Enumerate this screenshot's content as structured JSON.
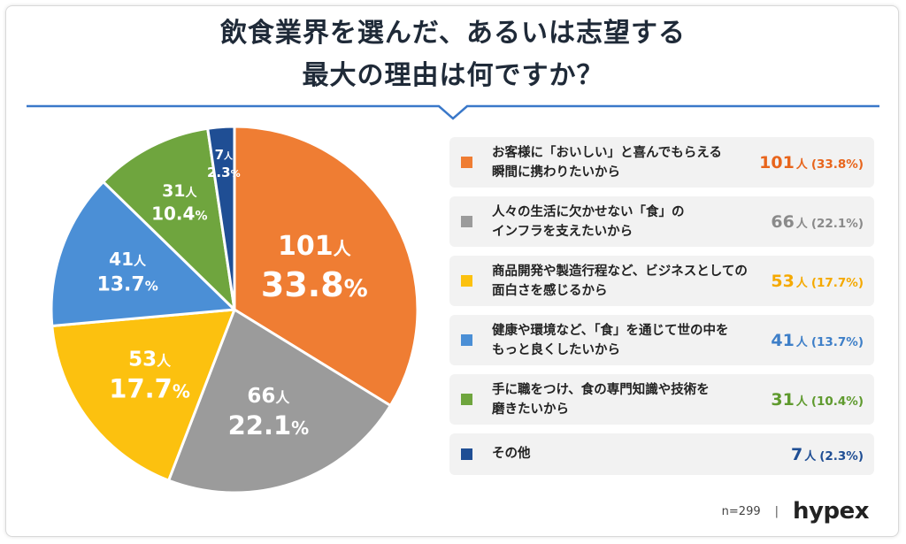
{
  "title": {
    "line1": "飲食業界を選んだ、あるいは志望する",
    "line2": "最大の理由は何ですか？"
  },
  "chart_data": {
    "type": "pie",
    "unit": "人",
    "slices": [
      {
        "label": "お客様に「おいしい」と喜んでもらえる瞬間に携わりたいから",
        "value": 101,
        "percent": "33.8%",
        "color": "#ef7d33"
      },
      {
        "label": "人々の生活に欠かせない「食」のインフラを支えたいから",
        "value": 66,
        "percent": "22.1%",
        "color": "#9b9b9b"
      },
      {
        "label": "商品開発や製造行程など、ビジネスとしての面白さを感じるから",
        "value": 53,
        "percent": "17.7%",
        "color": "#fcc10f"
      },
      {
        "label": "健康や環境など、「食」を通じて世の中をもっと良くしたいから",
        "value": 41,
        "percent": "13.7%",
        "color": "#4b8fd6"
      },
      {
        "label": "手に職をつけ、食の専門知識や技術を磨きたいから",
        "value": 31,
        "percent": "10.4%",
        "color": "#6fa53e"
      },
      {
        "label": "その他",
        "value": 7,
        "percent": "2.3%",
        "color": "#1f4e94"
      }
    ]
  },
  "legend": [
    {
      "line1": "お客様に「おいしい」と喜んでもらえる",
      "line2": "瞬間に携わりたいから",
      "count": "101",
      "unit": "人",
      "pct": "(33.8%)",
      "color": "#ef7d33",
      "text_color": "#e8651c"
    },
    {
      "line1": "人々の生活に欠かせない「食」の",
      "line2": "インフラを支えたいから",
      "count": "66",
      "unit": "人",
      "pct": "(22.1%)",
      "color": "#9b9b9b",
      "text_color": "#8a8a8a"
    },
    {
      "line1": "商品開発や製造行程など、ビジネスとしての",
      "line2": "面白さを感じるから",
      "count": "53",
      "unit": "人",
      "pct": "(17.7%)",
      "color": "#fcc10f",
      "text_color": "#f5a900"
    },
    {
      "line1": "健康や環境など、「食」を通じて世の中を",
      "line2": "もっと良くしたいから",
      "count": "41",
      "unit": "人",
      "pct": "(13.7%)",
      "color": "#4b8fd6",
      "text_color": "#3e7fc8"
    },
    {
      "line1": "手に職をつけ、食の専門知識や技術を",
      "line2": "磨きたいから",
      "count": "31",
      "unit": "人",
      "pct": "(10.4%)",
      "color": "#6fa53e",
      "text_color": "#5f9a2e"
    },
    {
      "line1": "その他",
      "line2": "",
      "count": "7",
      "unit": "人",
      "pct": "(2.3%)",
      "color": "#1f4e94",
      "text_color": "#1f4e94"
    }
  ],
  "footer": {
    "sample": "n=299",
    "separator": "|",
    "logo": "hypex"
  },
  "colors": {
    "divider": "#3a78c9",
    "title": "#1f2a38"
  }
}
